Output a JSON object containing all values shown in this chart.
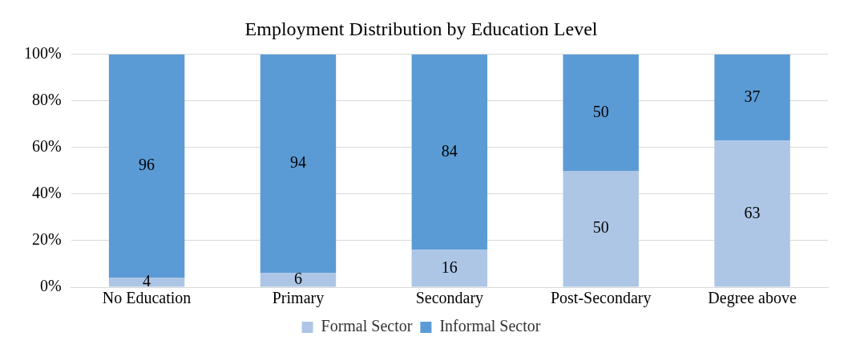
{
  "chart_data": {
    "type": "bar",
    "title": "Employment Distribution by Education Level",
    "categories": [
      "No Education",
      "Primary",
      "Secondary",
      "Post-Secondary",
      "Degree above"
    ],
    "stacked": true,
    "series": [
      {
        "name": "Formal Sector",
        "color": "#adc6e6",
        "values": [
          4,
          6,
          16,
          50,
          63
        ]
      },
      {
        "name": "Informal Sector",
        "color": "#5b9bd5",
        "values": [
          96,
          94,
          84,
          50,
          37
        ]
      }
    ],
    "ylim": [
      0,
      100
    ],
    "yticks": [
      {
        "value": 0,
        "label": "0%"
      },
      {
        "value": 20,
        "label": "20%"
      },
      {
        "value": 40,
        "label": "40%"
      },
      {
        "value": 60,
        "label": "60%"
      },
      {
        "value": 80,
        "label": "80%"
      },
      {
        "value": 100,
        "label": "100%"
      }
    ],
    "grid": "y",
    "legend": "bottom",
    "data_labels": true
  }
}
